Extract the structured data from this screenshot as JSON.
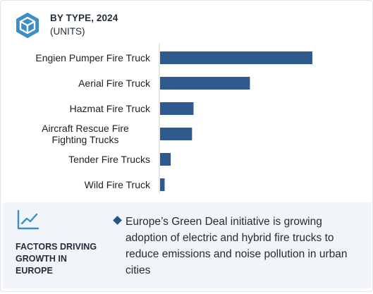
{
  "header": {
    "title": "BY TYPE, 2024",
    "subtitle": "(UNITS)",
    "icon": "cube-hexagon-icon"
  },
  "colors": {
    "bar": "#2f5a8e",
    "axis": "#cfcfcf",
    "accent": "#2a5288",
    "panel": "#f1f4f8"
  },
  "chart_data": {
    "type": "bar",
    "orientation": "horizontal",
    "categories": [
      "Engien Pumper Fire Truck",
      "Aerial Fire Truck",
      "Hazmat Fire Truck",
      "Aircraft Rescue Fire Fighting Trucks",
      "Tender Fire Trucks",
      "Wild Fire Truck"
    ],
    "values": [
      100,
      59,
      22,
      21,
      7,
      3
    ],
    "xlim": [
      0,
      100
    ],
    "grid": false,
    "legend": "none"
  },
  "factors": {
    "icon": "trend-line-icon",
    "heading_lines": [
      "FACTORS DRIVING",
      "GROWTH IN",
      "EUROPE"
    ],
    "bullet_icon": "diamond-bullet-icon",
    "bullet_text": "Europe’s Green Deal initiative is growing adoption of electric and hybrid fire trucks to reduce emissions and noise pollution in urban cities"
  }
}
